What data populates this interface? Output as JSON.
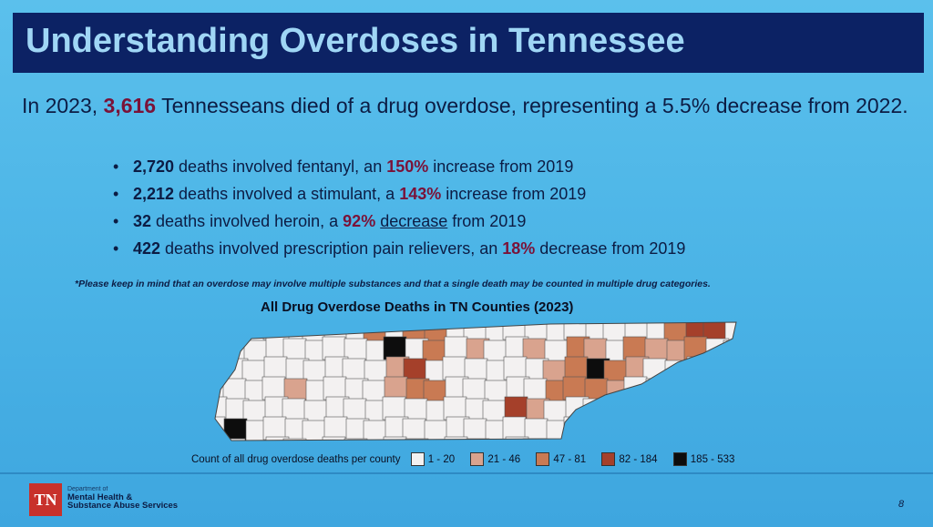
{
  "title": "Understanding Overdoses in Tennessee",
  "lead": {
    "p1": "In 2023, ",
    "num": "3,616",
    "p2": " Tennesseans died of a drug overdose, representing a 5.5% decrease from 2022."
  },
  "bullets": [
    {
      "num": "2,720",
      "text1": " deaths involved fentanyl, an ",
      "pct": "150%",
      "text2": " increase from 2019"
    },
    {
      "num": "2,212",
      "text1": " deaths involved a stimulant, a ",
      "pct": "143%",
      "text2": " increase from 2019"
    },
    {
      "num": "32",
      "text1": " deaths involved heroin, a ",
      "pct": "92%",
      "underline": "decrease",
      "text2": " from 2019"
    },
    {
      "num": "422",
      "text1": " deaths involved prescription pain relievers, an ",
      "pct": "18%",
      "text2": " decrease from 2019"
    }
  ],
  "footnote": "*Please keep in mind that an overdose may involve multiple substances and that a single death may be counted in multiple drug categories.",
  "map": {
    "title": "All Drug Overdose Deaths in TN Counties (2023)",
    "legend_label": "Count of all drug overdose deaths per county",
    "legend": [
      {
        "range": "1 - 20",
        "color": "#f3f1f1"
      },
      {
        "range": "21 - 46",
        "color": "#d9a38e"
      },
      {
        "range": "47 - 81",
        "color": "#c97a53"
      },
      {
        "range": "82 - 184",
        "color": "#a5402a"
      },
      {
        "range": "185 - 533",
        "color": "#0d0d0d"
      }
    ]
  },
  "footer": {
    "logo": "TN",
    "dept_line1": "Department of",
    "dept_line2": "Mental Health &",
    "dept_line3": "Substance Abuse Services",
    "page": "8"
  }
}
